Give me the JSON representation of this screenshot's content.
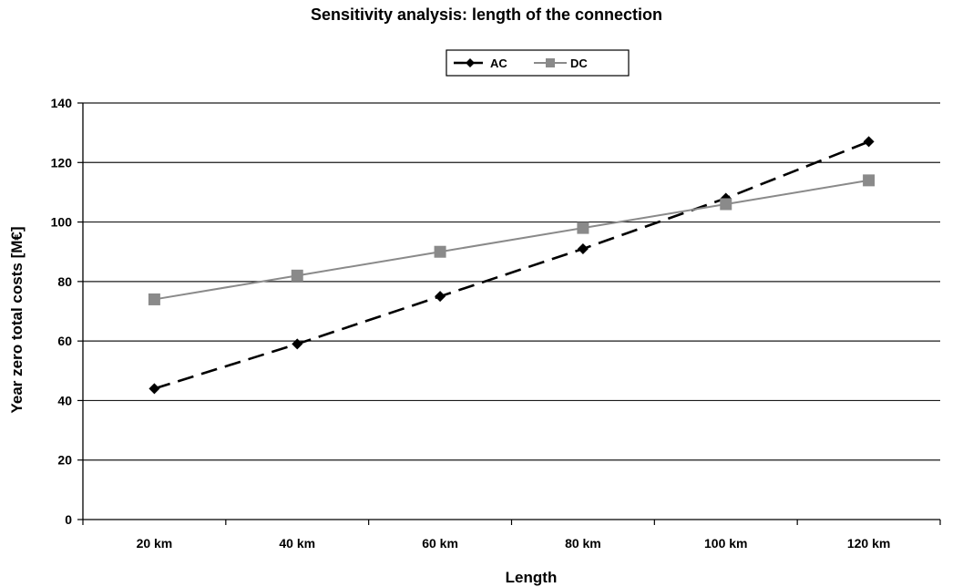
{
  "chart_data": {
    "type": "line",
    "title": "Sensitivity analysis: length of the connection",
    "xlabel": "Length",
    "ylabel": "Year zero total costs [M€]",
    "categories": [
      "20 km",
      "40 km",
      "60 km",
      "80 km",
      "100 km",
      "120 km"
    ],
    "ylim": [
      0,
      140
    ],
    "yticks": [
      0,
      20,
      40,
      60,
      80,
      100,
      120,
      140
    ],
    "grid": "horizontal",
    "legend_position": "top-center",
    "series": [
      {
        "name": "AC",
        "values": [
          44,
          59,
          75,
          91,
          108,
          127
        ],
        "color": "#000000",
        "line_style": "dashed",
        "marker": "diamond"
      },
      {
        "name": "DC",
        "values": [
          74,
          82,
          90,
          98,
          106,
          114
        ],
        "color": "#8a8a8a",
        "line_style": "solid",
        "marker": "square"
      }
    ]
  }
}
